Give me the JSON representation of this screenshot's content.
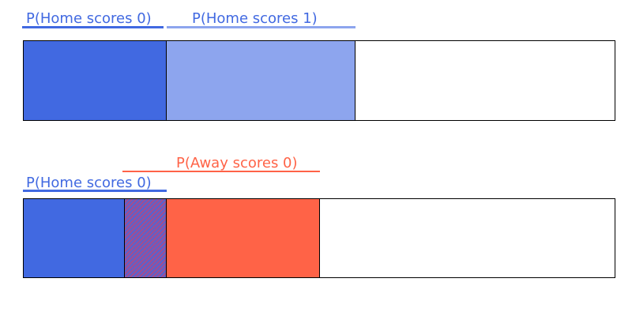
{
  "colors": {
    "home_dark": "#4169e1",
    "home_light": "#8da5ee",
    "away": "#ff6347",
    "overlap_hatch": "#9b4f96",
    "border": "#000000"
  },
  "top_diagram": {
    "labels": {
      "home_0": "P(Home scores 0)",
      "home_1": "P(Home scores 1)"
    },
    "segments": [
      {
        "name": "home-scores-0",
        "share": 0.24
      },
      {
        "name": "home-scores-1",
        "share": 0.32
      }
    ]
  },
  "bottom_diagram": {
    "labels": {
      "home_0": "P(Home scores 0)",
      "away_0": "P(Away scores 0)"
    },
    "segments": [
      {
        "name": "home-scores-0-only",
        "share": 0.17
      },
      {
        "name": "home-and-away-overlap",
        "share": 0.07
      },
      {
        "name": "away-scores-0-only",
        "share": 0.26
      }
    ]
  }
}
